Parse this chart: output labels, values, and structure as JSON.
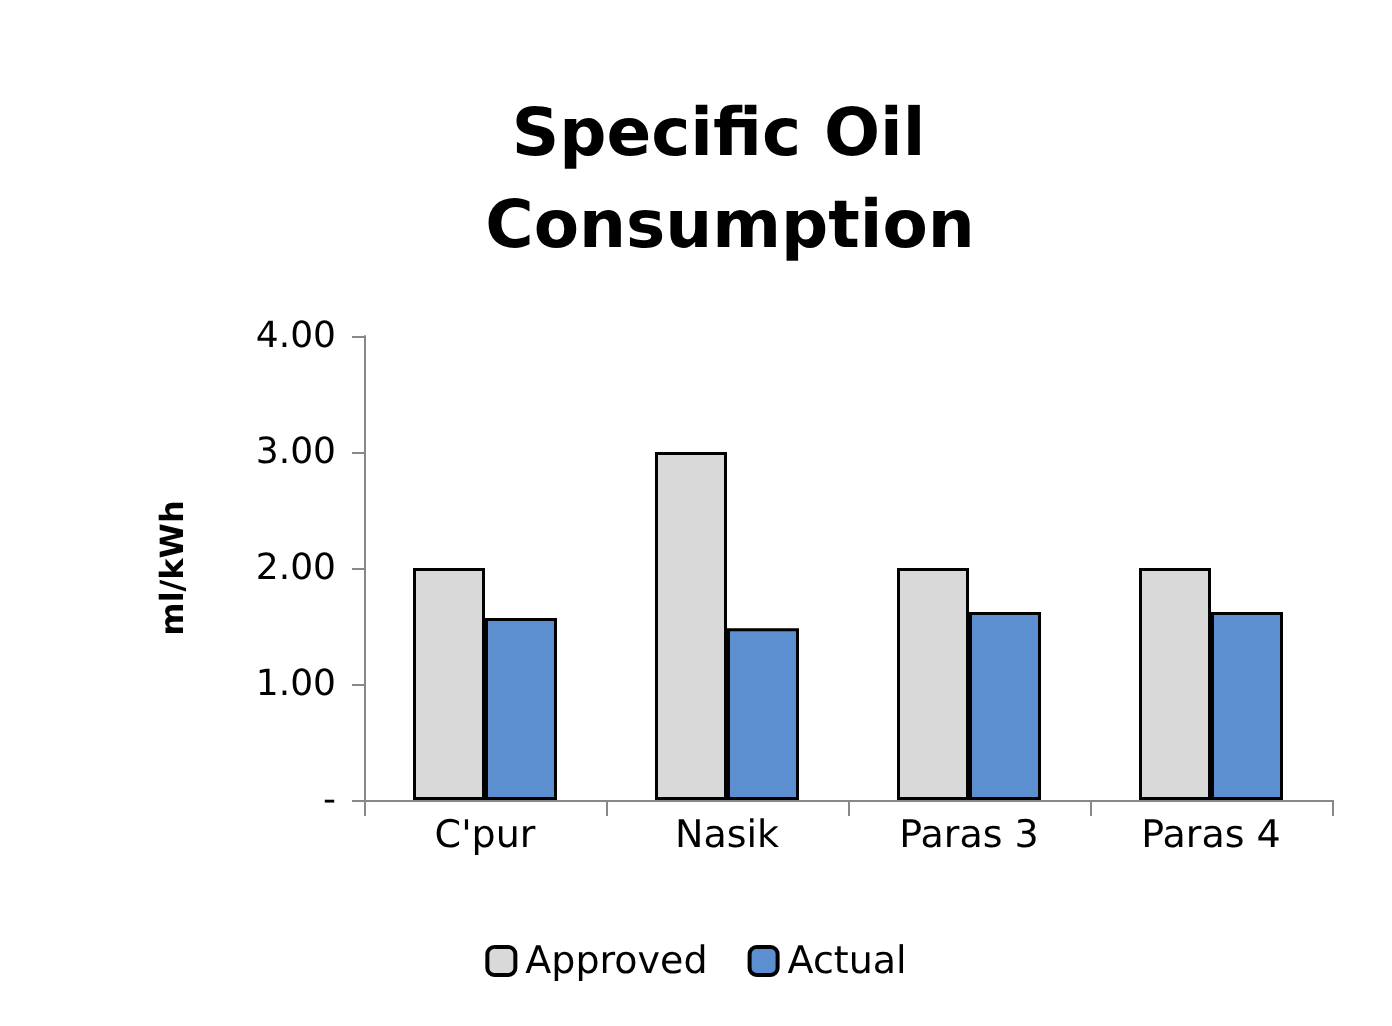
{
  "chart_data": {
    "type": "bar",
    "title": "Specific Oil Consumption",
    "ylabel": "ml/kWh",
    "categories": [
      "C'pur",
      "Nasik",
      "Paras 3",
      "Paras 4"
    ],
    "series": [
      {
        "name": "Approved",
        "color": "#d9d9d9",
        "values": [
          2,
          3,
          2,
          2
        ]
      },
      {
        "name": "Actual",
        "color": "#5b8fd0",
        "values": [
          1.57,
          1.48,
          1.62,
          1.62
        ]
      }
    ],
    "ylim": [
      0,
      4
    ],
    "yticks": [
      {
        "value": 0,
        "label": "-"
      },
      {
        "value": 1,
        "label": "1.00"
      },
      {
        "value": 2,
        "label": "2.00"
      },
      {
        "value": 3,
        "label": "3.00"
      },
      {
        "value": 4,
        "label": "4.00"
      }
    ],
    "legend": "bottom"
  }
}
